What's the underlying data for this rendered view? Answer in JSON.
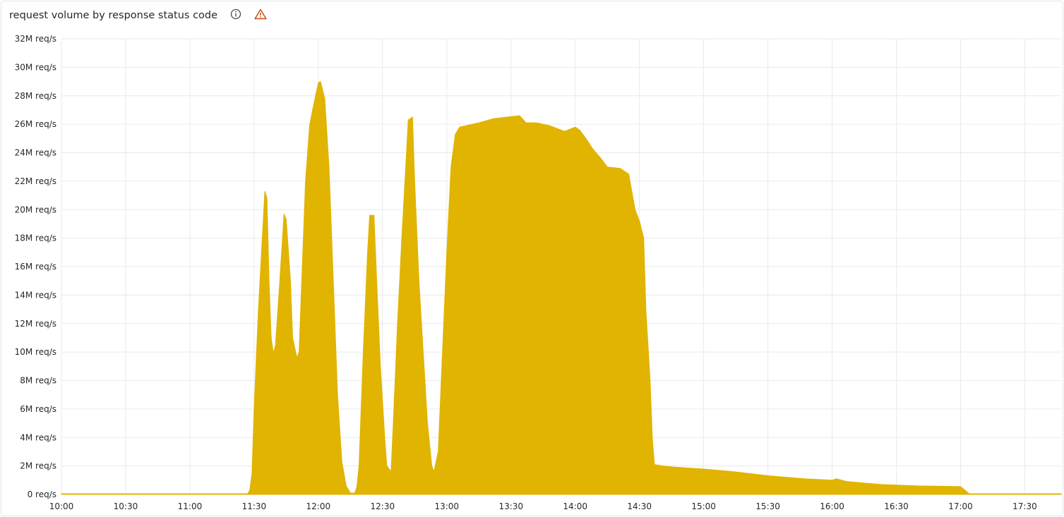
{
  "panel": {
    "title": "request volume by response status code",
    "icons": [
      "info-icon",
      "warning-icon"
    ],
    "warning_color": "#c4460f"
  },
  "chart_data": {
    "type": "area",
    "title": "request volume by response status code",
    "xlabel": "",
    "ylabel": "",
    "unit": "req/s",
    "color": "#e0b400",
    "grid": true,
    "legend": "none",
    "xlim": [
      "10:00",
      "17:47"
    ],
    "ylim": [
      0,
      32
    ],
    "y_ticks": [
      "0 req/s",
      "2M req/s",
      "4M req/s",
      "6M req/s",
      "8M req/s",
      "10M req/s",
      "12M req/s",
      "14M req/s",
      "16M req/s",
      "18M req/s",
      "20M req/s",
      "22M req/s",
      "24M req/s",
      "26M req/s",
      "28M req/s",
      "30M req/s",
      "32M req/s"
    ],
    "x_ticks": [
      "10:00",
      "10:30",
      "11:00",
      "11:30",
      "12:00",
      "12:30",
      "13:00",
      "13:30",
      "14:00",
      "14:30",
      "15:00",
      "15:30",
      "16:00",
      "16:30",
      "17:00",
      "17:30"
    ],
    "series": [
      {
        "x": [
          "10:00",
          "11:27",
          "11:28",
          "11:29",
          "11:30",
          "11:32",
          "11:35",
          "11:36",
          "11:37",
          "11:38",
          "11:39",
          "11:40",
          "11:42",
          "11:44",
          "11:45",
          "11:47",
          "11:48",
          "11:50",
          "11:51",
          "11:52",
          "11:54",
          "11:56",
          "11:58",
          "12:00",
          "12:01",
          "12:03",
          "12:05",
          "12:07",
          "12:09",
          "12:11",
          "12:13",
          "12:15",
          "12:17",
          "12:18",
          "12:19",
          "12:21",
          "12:23",
          "12:24",
          "12:26",
          "12:27",
          "12:29",
          "12:31",
          "12:32",
          "12:34",
          "12:35",
          "12:37",
          "12:39",
          "12:41",
          "12:42",
          "12:44",
          "12:45",
          "12:47",
          "12:49",
          "12:51",
          "12:53",
          "12:54",
          "12:56",
          "12:58",
          "13:00",
          "13:02",
          "13:04",
          "13:06",
          "13:15",
          "13:22",
          "13:34",
          "13:37",
          "13:42",
          "13:48",
          "13:55",
          "14:00",
          "14:02",
          "14:05",
          "14:08",
          "14:12",
          "14:15",
          "14:21",
          "14:25",
          "14:28",
          "14:30",
          "14:32",
          "14:33",
          "14:35",
          "14:36",
          "14:37",
          "14:41",
          "14:48",
          "14:59",
          "15:14",
          "15:31",
          "15:47",
          "16:00",
          "16:02",
          "16:07",
          "16:23",
          "16:40",
          "17:00",
          "17:02",
          "17:04",
          "17:47"
        ],
        "values_millions": [
          0.05,
          0.05,
          0.3,
          1.5,
          6,
          13,
          21.3,
          20.8,
          15,
          11,
          9.9,
          10.5,
          15,
          19.7,
          19.3,
          15,
          11,
          9.6,
          10,
          14,
          22,
          26,
          27.5,
          28.9,
          29,
          27.8,
          23,
          15,
          7,
          2.3,
          0.6,
          0.1,
          0.1,
          0.5,
          2,
          10,
          17,
          19.6,
          19.6,
          16,
          9,
          4,
          2,
          1.6,
          5,
          12,
          18,
          23.5,
          26.3,
          26.5,
          22,
          15,
          10,
          5,
          2,
          1.6,
          3,
          10,
          17,
          23,
          25.3,
          25.8,
          26.1,
          26.4,
          26.6,
          26.1,
          26.1,
          25.9,
          25.5,
          25.8,
          25.6,
          25.0,
          24.3,
          23.6,
          23.0,
          22.9,
          22.5,
          20,
          19.2,
          18,
          13,
          8,
          4,
          2.1,
          2.0,
          1.9,
          1.8,
          1.6,
          1.3,
          1.1,
          1.0,
          1.1,
          0.9,
          0.7,
          0.6,
          0.55,
          0.3,
          0.05,
          0.05
        ]
      }
    ]
  }
}
